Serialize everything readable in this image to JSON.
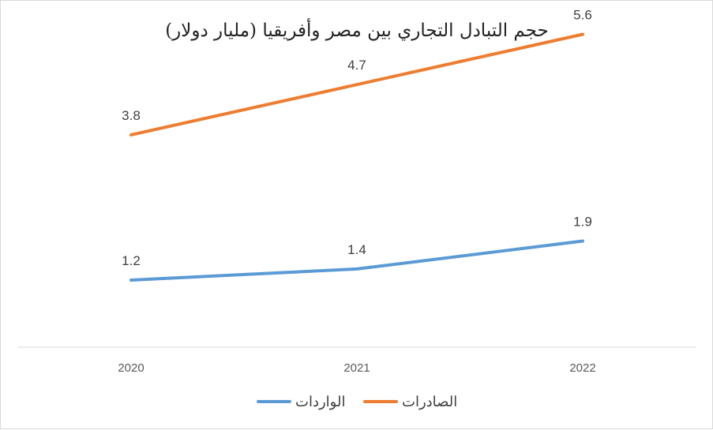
{
  "colors": {
    "exports": "#ED7D31",
    "imports": "#5B9BD5",
    "axis": "#d9d9d9"
  },
  "chart_data": {
    "type": "line",
    "title": "حجم التبادل التجاري بين مصر وأفريقيا (مليار دولار)",
    "categories": [
      "2020",
      "2021",
      "2022"
    ],
    "series": [
      {
        "name": "الصادرات",
        "values": [
          3.8,
          4.7,
          5.6
        ]
      },
      {
        "name": "الواردات",
        "values": [
          1.2,
          1.4,
          1.9
        ]
      }
    ],
    "ylim": [
      0,
      6.2
    ],
    "grid": false,
    "legend": "bottom"
  }
}
